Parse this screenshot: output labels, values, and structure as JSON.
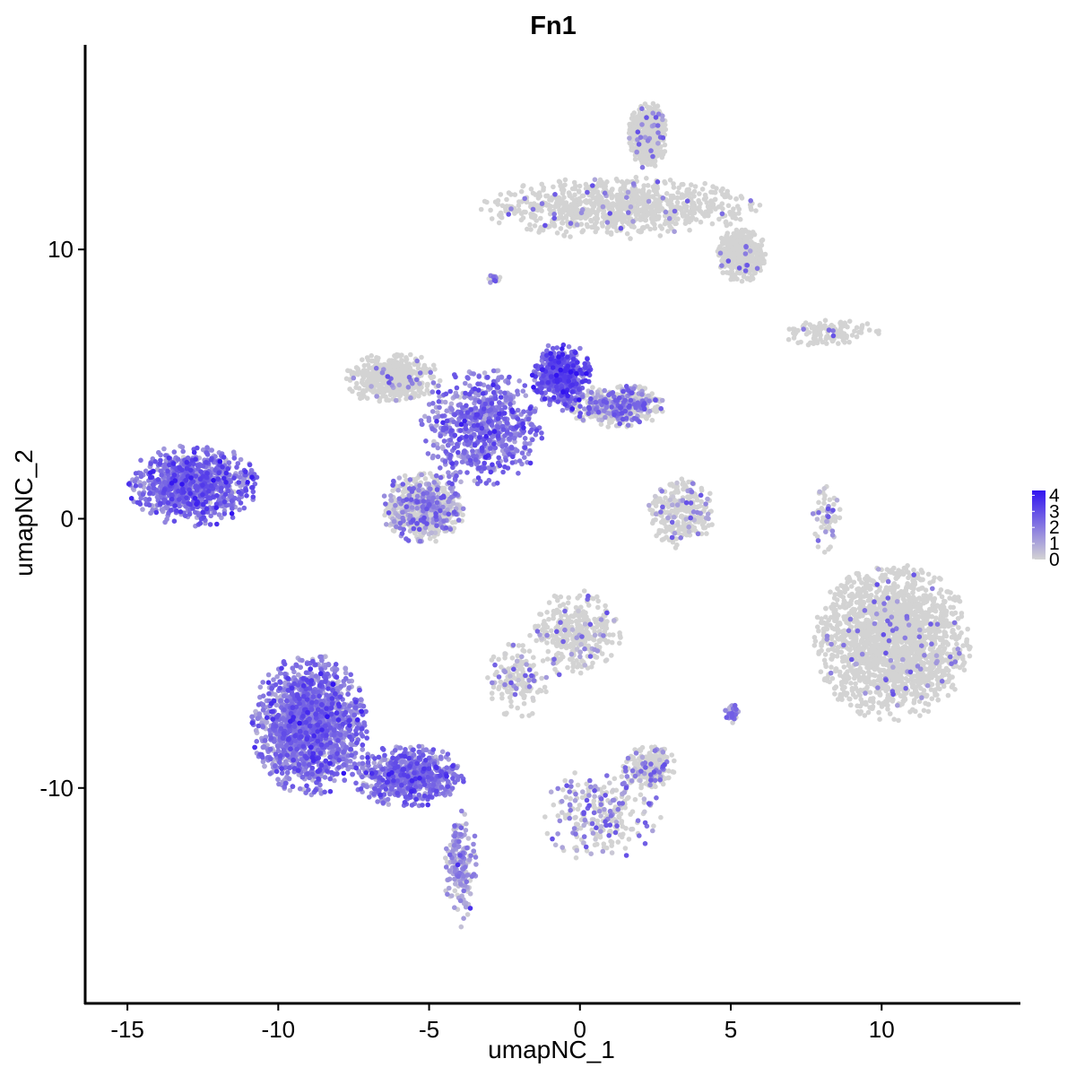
{
  "chart_data": {
    "type": "scatter",
    "title": "Fn1",
    "xlabel": "umapNC_1",
    "ylabel": "umapNC_2",
    "xlim": [
      -16.4,
      14.6
    ],
    "ylim": [
      -18.0,
      17.6
    ],
    "x_ticks": [
      -15,
      -10,
      -5,
      0,
      5,
      10
    ],
    "x_tick_labels": [
      "-15",
      "-10",
      "-5",
      "0",
      "5",
      "10"
    ],
    "y_ticks": [
      -10,
      0,
      10
    ],
    "y_tick_labels": [
      "-10",
      "0",
      "10"
    ],
    "grid": false,
    "legend": {
      "position": "right",
      "labels": [
        "4",
        "3",
        "2",
        "1",
        "0"
      ],
      "values": [
        4,
        3,
        2,
        1,
        0
      ],
      "low_color": "#d3d3d3",
      "high_color": "#3214f0"
    },
    "point_color_low": "#d3d3d3",
    "point_color_high": "#3214f0",
    "expression_range": [
      0,
      4.3
    ],
    "clusters": [
      {
        "name": "top-right-vertical",
        "x": [
          1.6,
          2.9
        ],
        "y": [
          13.0,
          15.5
        ],
        "n": 650,
        "expr": 0.02
      },
      {
        "name": "top-right-band",
        "x": [
          -3.4,
          6.0
        ],
        "y": [
          10.4,
          12.7
        ],
        "n": 900,
        "expr": 0.02
      },
      {
        "name": "top-right-tail",
        "x": [
          4.5,
          6.2
        ],
        "y": [
          8.8,
          10.8
        ],
        "n": 380,
        "expr": 0.02
      },
      {
        "name": "small-top",
        "x": [
          -3.1,
          -2.6
        ],
        "y": [
          8.6,
          9.2
        ],
        "n": 15,
        "expr": 0.5
      },
      {
        "name": "right-thin",
        "x": [
          6.6,
          10.0
        ],
        "y": [
          6.4,
          7.4
        ],
        "n": 120,
        "expr": 0.03
      },
      {
        "name": "center-left-lobe",
        "x": [
          -7.8,
          -4.6
        ],
        "y": [
          4.2,
          6.2
        ],
        "n": 480,
        "expr": 0.05
      },
      {
        "name": "center-diagonal",
        "x": [
          -5.3,
          -1.2
        ],
        "y": [
          1.2,
          5.6
        ],
        "n": 700,
        "expr": 2.0
      },
      {
        "name": "center-upper-right",
        "x": [
          -1.6,
          0.4
        ],
        "y": [
          4.0,
          6.6
        ],
        "n": 450,
        "expr": 2.5
      },
      {
        "name": "center-right-arm",
        "x": [
          -0.5,
          2.9
        ],
        "y": [
          3.4,
          5.0
        ],
        "n": 450,
        "expr": 0.5
      },
      {
        "name": "center-bottom-blob",
        "x": [
          -6.6,
          -3.8
        ],
        "y": [
          -0.9,
          1.8
        ],
        "n": 650,
        "expr": 0.4
      },
      {
        "name": "left-island",
        "x": [
          -15.0,
          -10.6
        ],
        "y": [
          -0.3,
          2.8
        ],
        "n": 850,
        "expr": 2.1
      },
      {
        "name": "right-cluster-left",
        "x": [
          2.2,
          4.5
        ],
        "y": [
          -1.1,
          1.6
        ],
        "n": 250,
        "expr": 0.2
      },
      {
        "name": "right-big-blob",
        "x": [
          7.7,
          13.0
        ],
        "y": [
          -7.5,
          -1.6
        ],
        "n": 2100,
        "expr": 0.02
      },
      {
        "name": "right-strand",
        "x": [
          7.6,
          8.7
        ],
        "y": [
          -1.3,
          1.3
        ],
        "n": 60,
        "expr": 0.3
      },
      {
        "name": "mid-lower-blob",
        "x": [
          -1.7,
          1.4
        ],
        "y": [
          -5.9,
          -2.6
        ],
        "n": 350,
        "expr": 0.1
      },
      {
        "name": "mid-lower-stem",
        "x": [
          -3.1,
          -1.0
        ],
        "y": [
          -7.4,
          -4.6
        ],
        "n": 160,
        "expr": 0.2
      },
      {
        "name": "bottom-left-big",
        "x": [
          -10.9,
          -7.0
        ],
        "y": [
          -10.3,
          -5.0
        ],
        "n": 2200,
        "expr": 1.9
      },
      {
        "name": "bottom-left-arm",
        "x": [
          -7.6,
          -3.8
        ],
        "y": [
          -10.7,
          -8.4
        ],
        "n": 600,
        "expr": 2.0
      },
      {
        "name": "bottom-left-stem",
        "x": [
          -4.5,
          -3.4
        ],
        "y": [
          -15.2,
          -10.6
        ],
        "n": 180,
        "expr": 1.0
      },
      {
        "name": "bottom-mid",
        "x": [
          -1.3,
          2.8
        ],
        "y": [
          -12.8,
          -9.2
        ],
        "n": 250,
        "expr": 0.4
      },
      {
        "name": "bottom-right-small",
        "x": [
          1.4,
          3.2
        ],
        "y": [
          -10.0,
          -8.4
        ],
        "n": 220,
        "expr": 0.3
      },
      {
        "name": "small-right-dot",
        "x": [
          4.8,
          5.3
        ],
        "y": [
          -7.6,
          -6.9
        ],
        "n": 40,
        "expr": 0.8
      }
    ]
  }
}
